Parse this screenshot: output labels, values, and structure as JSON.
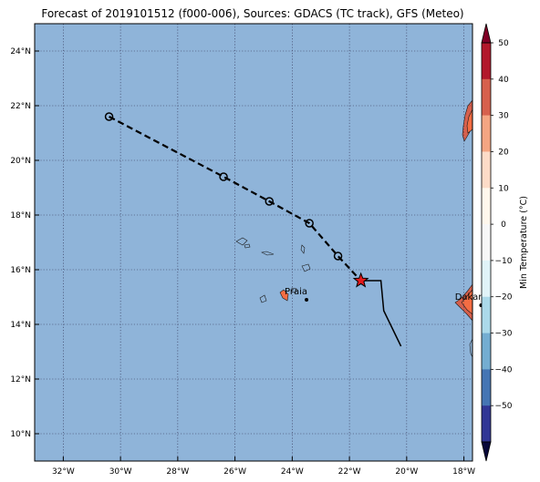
{
  "title": "Forecast of 2019101512 (f000-006), Sources: GDACS (TC track), GFS (Meteo)",
  "map": {
    "lon_range": [
      -33,
      -17.7
    ],
    "lat_range": [
      9,
      25
    ],
    "x_ticks": [
      {
        "lon": -32,
        "label": "32°W"
      },
      {
        "lon": -30,
        "label": "30°W"
      },
      {
        "lon": -28,
        "label": "28°W"
      },
      {
        "lon": -26,
        "label": "26°W"
      },
      {
        "lon": -24,
        "label": "24°W"
      },
      {
        "lon": -22,
        "label": "22°W"
      },
      {
        "lon": -20,
        "label": "20°W"
      },
      {
        "lon": -18,
        "label": "18°W"
      }
    ],
    "y_ticks": [
      {
        "lat": 10,
        "label": "10°N"
      },
      {
        "lat": 12,
        "label": "12°N"
      },
      {
        "lat": 14,
        "label": "14°N"
      },
      {
        "lat": 16,
        "label": "16°N"
      },
      {
        "lat": 18,
        "label": "18°N"
      },
      {
        "lat": 20,
        "label": "20°N"
      },
      {
        "lat": 22,
        "label": "22°N"
      },
      {
        "lat": 24,
        "label": "24°N"
      }
    ],
    "grid": true,
    "ocean_color": "#8fb4d9"
  },
  "forecast_track": [
    {
      "lon": -30.4,
      "lat": 21.6
    },
    {
      "lon": -26.4,
      "lat": 19.4
    },
    {
      "lon": -24.8,
      "lat": 18.5
    },
    {
      "lon": -23.4,
      "lat": 17.7
    },
    {
      "lon": -22.4,
      "lat": 16.5
    },
    {
      "lon": -21.6,
      "lat": 15.6
    }
  ],
  "observed_track": [
    {
      "lon": -21.6,
      "lat": 15.6
    },
    {
      "lon": -20.9,
      "lat": 15.6
    },
    {
      "lon": -20.8,
      "lat": 14.5
    },
    {
      "lon": -20.2,
      "lat": 13.2
    }
  ],
  "current_position": {
    "lon": -21.6,
    "lat": 15.6
  },
  "cities": [
    {
      "name": "Praia",
      "lon": -23.5,
      "lat": 14.9
    },
    {
      "name": "Dakar",
      "lon": -17.4,
      "lat": 14.7
    }
  ],
  "colorbar": {
    "label": "Min Temperature (°C)",
    "ticks": [
      "50",
      "40",
      "30",
      "20",
      "10",
      "0",
      "−10",
      "−20",
      "−30",
      "−40",
      "−50"
    ],
    "bands": [
      "#b2182b",
      "#d6604d",
      "#f4a582",
      "#fddbc7",
      "#fff7ec",
      "#f7f7f7",
      "#e0f3f8",
      "#abd9e9",
      "#74add1",
      "#4575b4",
      "#313695"
    ],
    "extend_top": "#800026",
    "extend_bottom": "#08083a"
  }
}
